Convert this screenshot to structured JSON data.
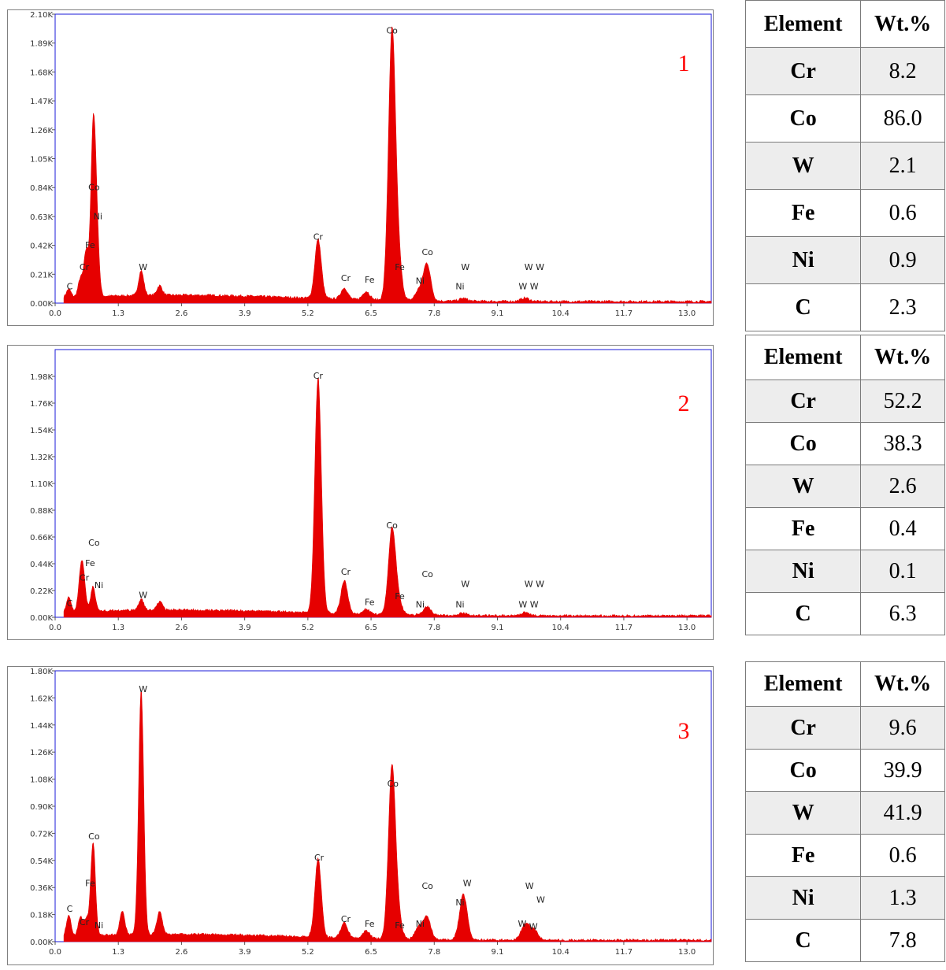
{
  "chart_data": [
    {
      "type": "line",
      "label": "1",
      "ylim": [
        0,
        2100
      ],
      "yticks": [
        "0.00K",
        "0.21K",
        "0.42K",
        "0.63K",
        "0.84K",
        "1.05K",
        "1.26K",
        "1.47K",
        "1.68K",
        "1.89K",
        "2.10K"
      ],
      "xlim": [
        0,
        13.5
      ],
      "xticks": [
        "0.0",
        "1.3",
        "2.6",
        "3.9",
        "5.2",
        "6.5",
        "7.8",
        "9.1",
        "10.4",
        "11.7",
        "13.0"
      ],
      "peaks": [
        {
          "x": 0.28,
          "y": 60
        },
        {
          "x": 0.52,
          "y": 130
        },
        {
          "x": 0.64,
          "y": 330
        },
        {
          "x": 0.78,
          "y": 1120
        },
        {
          "x": 0.85,
          "y": 500
        },
        {
          "x": 1.77,
          "y": 180
        },
        {
          "x": 2.15,
          "y": 70
        },
        {
          "x": 5.41,
          "y": 430
        },
        {
          "x": 5.95,
          "y": 80
        },
        {
          "x": 6.4,
          "y": 60
        },
        {
          "x": 6.93,
          "y": 1930
        },
        {
          "x": 7.06,
          "y": 260
        },
        {
          "x": 7.65,
          "y": 270
        },
        {
          "x": 7.48,
          "y": 70
        },
        {
          "x": 8.4,
          "y": 20
        },
        {
          "x": 9.67,
          "y": 25
        }
      ],
      "annotations": [
        {
          "label": "Co",
          "x": 6.93,
          "y": 1960
        },
        {
          "label": "Co",
          "x": 0.8,
          "y": 820
        },
        {
          "label": "Ni",
          "x": 0.88,
          "y": 610
        },
        {
          "label": "Fe",
          "x": 0.72,
          "y": 400
        },
        {
          "label": "Cr",
          "x": 0.6,
          "y": 240
        },
        {
          "label": "C",
          "x": 0.3,
          "y": 100
        },
        {
          "label": "W",
          "x": 1.81,
          "y": 240
        },
        {
          "label": "Cr",
          "x": 5.41,
          "y": 460
        },
        {
          "label": "Cr",
          "x": 5.98,
          "y": 160
        },
        {
          "label": "Fe",
          "x": 6.47,
          "y": 150
        },
        {
          "label": "Fe",
          "x": 7.09,
          "y": 240
        },
        {
          "label": "Co",
          "x": 7.66,
          "y": 350
        },
        {
          "label": "Ni",
          "x": 7.51,
          "y": 140
        },
        {
          "label": "W",
          "x": 8.44,
          "y": 240
        },
        {
          "label": "Ni",
          "x": 8.33,
          "y": 100
        },
        {
          "label": "W W",
          "x": 9.86,
          "y": 240
        },
        {
          "label": "W W",
          "x": 9.74,
          "y": 100
        }
      ]
    },
    {
      "type": "line",
      "label": "2",
      "ylim": [
        0,
        2200
      ],
      "yticks": [
        "0.00K",
        "0.22K",
        "0.44K",
        "0.66K",
        "0.88K",
        "1.10K",
        "1.32K",
        "1.54K",
        "1.76K",
        "1.98K"
      ],
      "xlim": [
        0,
        13.5
      ],
      "xticks": [
        "0.0",
        "1.3",
        "2.6",
        "3.9",
        "5.2",
        "6.5",
        "7.8",
        "9.1",
        "10.4",
        "11.7",
        "13.0"
      ],
      "peaks": [
        {
          "x": 0.28,
          "y": 120
        },
        {
          "x": 0.52,
          "y": 240
        },
        {
          "x": 0.58,
          "y": 270
        },
        {
          "x": 0.78,
          "y": 200
        },
        {
          "x": 1.77,
          "y": 90
        },
        {
          "x": 2.15,
          "y": 70
        },
        {
          "x": 5.41,
          "y": 1940
        },
        {
          "x": 5.95,
          "y": 270
        },
        {
          "x": 6.4,
          "y": 40
        },
        {
          "x": 6.93,
          "y": 700
        },
        {
          "x": 7.06,
          "y": 110
        },
        {
          "x": 7.65,
          "y": 70
        },
        {
          "x": 8.4,
          "y": 20
        },
        {
          "x": 9.67,
          "y": 25
        }
      ],
      "annotations": [
        {
          "label": "Cr",
          "x": 5.41,
          "y": 1960
        },
        {
          "label": "Co",
          "x": 6.93,
          "y": 730
        },
        {
          "label": "Co",
          "x": 0.8,
          "y": 590
        },
        {
          "label": "Fe",
          "x": 0.72,
          "y": 420
        },
        {
          "label": "Cr",
          "x": 0.6,
          "y": 300
        },
        {
          "label": "Ni",
          "x": 0.9,
          "y": 240
        },
        {
          "label": "C",
          "x": 0.3,
          "y": 90
        },
        {
          "label": "W",
          "x": 1.81,
          "y": 160
        },
        {
          "label": "Cr",
          "x": 5.98,
          "y": 350
        },
        {
          "label": "Fe",
          "x": 6.47,
          "y": 100
        },
        {
          "label": "Fe",
          "x": 7.09,
          "y": 150
        },
        {
          "label": "Co",
          "x": 7.66,
          "y": 330
        },
        {
          "label": "Ni",
          "x": 7.51,
          "y": 80
        },
        {
          "label": "W",
          "x": 8.44,
          "y": 250
        },
        {
          "label": "Ni",
          "x": 8.33,
          "y": 80
        },
        {
          "label": "W W",
          "x": 9.86,
          "y": 250
        },
        {
          "label": "W W",
          "x": 9.74,
          "y": 80
        }
      ]
    },
    {
      "type": "line",
      "label": "3",
      "ylim": [
        0,
        1800
      ],
      "yticks": [
        "0.00K",
        "0.18K",
        "0.36K",
        "0.54K",
        "0.72K",
        "0.90K",
        "1.08K",
        "1.26K",
        "1.44K",
        "1.62K",
        "1.80K"
      ],
      "xlim": [
        0,
        13.5
      ],
      "xticks": [
        "0.0",
        "1.3",
        "2.6",
        "3.9",
        "5.2",
        "6.5",
        "7.8",
        "9.1",
        "10.4",
        "11.7",
        "13.0"
      ],
      "peaks": [
        {
          "x": 0.28,
          "y": 140
        },
        {
          "x": 0.52,
          "y": 120
        },
        {
          "x": 0.64,
          "y": 110
        },
        {
          "x": 0.78,
          "y": 620
        },
        {
          "x": 1.38,
          "y": 160
        },
        {
          "x": 1.77,
          "y": 1630
        },
        {
          "x": 2.15,
          "y": 150
        },
        {
          "x": 5.41,
          "y": 520
        },
        {
          "x": 5.95,
          "y": 100
        },
        {
          "x": 6.4,
          "y": 50
        },
        {
          "x": 6.93,
          "y": 1140
        },
        {
          "x": 7.06,
          "y": 120
        },
        {
          "x": 7.65,
          "y": 150
        },
        {
          "x": 7.48,
          "y": 80
        },
        {
          "x": 8.4,
          "y": 300
        },
        {
          "x": 9.67,
          "y": 100
        },
        {
          "x": 9.85,
          "y": 70
        }
      ],
      "annotations": [
        {
          "label": "W",
          "x": 1.81,
          "y": 1660
        },
        {
          "label": "Co",
          "x": 6.95,
          "y": 1030
        },
        {
          "label": "Co",
          "x": 0.8,
          "y": 680
        },
        {
          "label": "Cr",
          "x": 5.43,
          "y": 540
        },
        {
          "label": "Fe",
          "x": 0.72,
          "y": 370
        },
        {
          "label": "C",
          "x": 0.3,
          "y": 200
        },
        {
          "label": "Cr",
          "x": 0.6,
          "y": 110
        },
        {
          "label": "Ni",
          "x": 0.9,
          "y": 90
        },
        {
          "label": "Cr",
          "x": 5.98,
          "y": 130
        },
        {
          "label": "Fe",
          "x": 6.47,
          "y": 100
        },
        {
          "label": "Fe",
          "x": 7.09,
          "y": 90
        },
        {
          "label": "Co",
          "x": 7.66,
          "y": 350
        },
        {
          "label": "Ni",
          "x": 7.51,
          "y": 100
        },
        {
          "label": "W",
          "x": 8.48,
          "y": 370
        },
        {
          "label": "Ni",
          "x": 8.33,
          "y": 240
        },
        {
          "label": "W",
          "x": 9.76,
          "y": 350
        },
        {
          "label": "W",
          "x": 9.99,
          "y": 260
        },
        {
          "label": "W",
          "x": 9.61,
          "y": 100
        },
        {
          "label": "W",
          "x": 9.84,
          "y": 80
        }
      ]
    }
  ],
  "tables": [
    {
      "header": [
        "Element",
        "Wt.%"
      ],
      "rows": [
        [
          "Cr",
          "8.2"
        ],
        [
          "Co",
          "86.0"
        ],
        [
          "W",
          "2.1"
        ],
        [
          "Fe",
          "0.6"
        ],
        [
          "Ni",
          "0.9"
        ],
        [
          "C",
          "2.3"
        ]
      ]
    },
    {
      "header": [
        "Element",
        "Wt.%"
      ],
      "rows": [
        [
          "Cr",
          "52.2"
        ],
        [
          "Co",
          "38.3"
        ],
        [
          "W",
          "2.6"
        ],
        [
          "Fe",
          "0.4"
        ],
        [
          "Ni",
          "0.1"
        ],
        [
          "C",
          "6.3"
        ]
      ]
    },
    {
      "header": [
        "Element",
        "Wt.%"
      ],
      "rows": [
        [
          "Cr",
          "9.6"
        ],
        [
          "Co",
          "39.9"
        ],
        [
          "W",
          "41.9"
        ],
        [
          "Fe",
          "0.6"
        ],
        [
          "Ni",
          "1.3"
        ],
        [
          "C",
          "7.8"
        ]
      ]
    }
  ],
  "colors": {
    "spectrum": "#e60000",
    "plot_border": "#1a1ad9",
    "label_red": "#ff0000",
    "shade": "#ededed"
  }
}
